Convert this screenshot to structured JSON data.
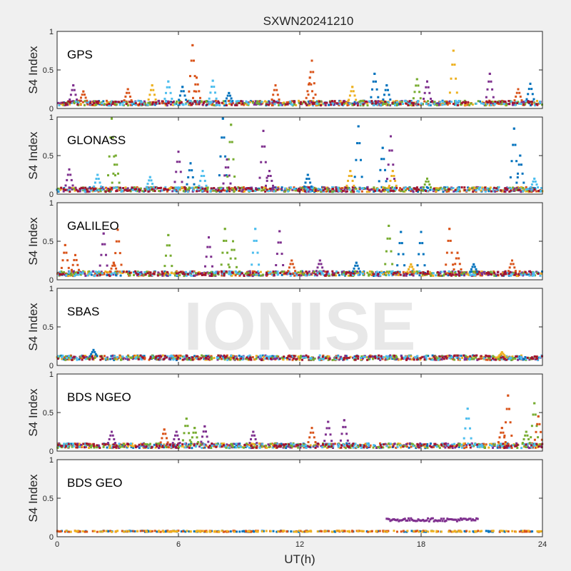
{
  "figure": {
    "title": "SXWN20241210",
    "xlabel": "UT(h)",
    "ylabel": "S4 Index",
    "watermark": "IONISE",
    "series_colors": [
      "#0072BD",
      "#D95319",
      "#EDB120",
      "#7E2F8E",
      "#77AC30",
      "#4DBEEE",
      "#A2142F"
    ]
  },
  "chart_data": [
    {
      "type": "scatter",
      "panel": "GPS",
      "ylabel": "S4 Index",
      "xlim": [
        0,
        24
      ],
      "ylim": [
        0,
        1
      ],
      "xticks": [
        0,
        6,
        12,
        18,
        24
      ],
      "yticks": [
        0,
        0.5,
        1
      ],
      "baseline": 0.07,
      "spikes": [
        {
          "x": 0.8,
          "y": 0.3,
          "color": "#7E2F8E"
        },
        {
          "x": 1.3,
          "y": 0.22,
          "color": "#D95319"
        },
        {
          "x": 3.5,
          "y": 0.25,
          "color": "#D95319"
        },
        {
          "x": 4.7,
          "y": 0.3,
          "color": "#EDB120"
        },
        {
          "x": 5.5,
          "y": 0.35,
          "color": "#4DBEEE"
        },
        {
          "x": 6.2,
          "y": 0.28,
          "color": "#0072BD"
        },
        {
          "x": 6.7,
          "y": 0.82,
          "color": "#D95319"
        },
        {
          "x": 6.9,
          "y": 0.4,
          "color": "#D95319"
        },
        {
          "x": 7.7,
          "y": 0.36,
          "color": "#4DBEEE"
        },
        {
          "x": 8.5,
          "y": 0.2,
          "color": "#0072BD"
        },
        {
          "x": 10.8,
          "y": 0.3,
          "color": "#D95319"
        },
        {
          "x": 12.6,
          "y": 0.62,
          "color": "#D95319"
        },
        {
          "x": 12.5,
          "y": 0.4,
          "color": "#D95319"
        },
        {
          "x": 14.6,
          "y": 0.28,
          "color": "#EDB120"
        },
        {
          "x": 15.7,
          "y": 0.45,
          "color": "#0072BD"
        },
        {
          "x": 16.3,
          "y": 0.3,
          "color": "#0072BD"
        },
        {
          "x": 17.8,
          "y": 0.38,
          "color": "#77AC30"
        },
        {
          "x": 18.3,
          "y": 0.35,
          "color": "#7E2F8E"
        },
        {
          "x": 19.6,
          "y": 0.75,
          "color": "#EDB120"
        },
        {
          "x": 21.4,
          "y": 0.45,
          "color": "#7E2F8E"
        },
        {
          "x": 22.8,
          "y": 0.25,
          "color": "#D95319"
        },
        {
          "x": 23.4,
          "y": 0.32,
          "color": "#0072BD"
        }
      ]
    },
    {
      "type": "scatter",
      "panel": "GLONASS",
      "ylabel": "S4 Index",
      "xlim": [
        0,
        24
      ],
      "ylim": [
        0,
        1
      ],
      "xticks": [
        0,
        6,
        12,
        18,
        24
      ],
      "yticks": [
        0,
        0.5,
        1
      ],
      "baseline": 0.06,
      "spikes": [
        {
          "x": 0.6,
          "y": 0.32,
          "color": "#7E2F8E"
        },
        {
          "x": 2.0,
          "y": 0.25,
          "color": "#4DBEEE"
        },
        {
          "x": 2.7,
          "y": 0.98,
          "color": "#77AC30"
        },
        {
          "x": 2.9,
          "y": 0.5,
          "color": "#77AC30"
        },
        {
          "x": 4.6,
          "y": 0.22,
          "color": "#4DBEEE"
        },
        {
          "x": 6.0,
          "y": 0.55,
          "color": "#7E2F8E"
        },
        {
          "x": 6.6,
          "y": 0.4,
          "color": "#0072BD"
        },
        {
          "x": 7.2,
          "y": 0.3,
          "color": "#4DBEEE"
        },
        {
          "x": 8.2,
          "y": 0.98,
          "color": "#0072BD"
        },
        {
          "x": 8.6,
          "y": 0.9,
          "color": "#77AC30"
        },
        {
          "x": 8.4,
          "y": 0.45,
          "color": "#7E2F8E"
        },
        {
          "x": 10.2,
          "y": 0.82,
          "color": "#7E2F8E"
        },
        {
          "x": 10.5,
          "y": 0.3,
          "color": "#7E2F8E"
        },
        {
          "x": 12.4,
          "y": 0.25,
          "color": "#0072BD"
        },
        {
          "x": 14.5,
          "y": 0.3,
          "color": "#EDB120"
        },
        {
          "x": 14.9,
          "y": 0.88,
          "color": "#0072BD"
        },
        {
          "x": 16.1,
          "y": 0.6,
          "color": "#0072BD"
        },
        {
          "x": 16.5,
          "y": 0.75,
          "color": "#7E2F8E"
        },
        {
          "x": 16.6,
          "y": 0.3,
          "color": "#EDB120"
        },
        {
          "x": 18.3,
          "y": 0.2,
          "color": "#77AC30"
        },
        {
          "x": 22.6,
          "y": 0.85,
          "color": "#0072BD"
        },
        {
          "x": 22.9,
          "y": 0.5,
          "color": "#0072BD"
        },
        {
          "x": 23.6,
          "y": 0.2,
          "color": "#4DBEEE"
        }
      ]
    },
    {
      "type": "scatter",
      "panel": "GALILEO",
      "ylabel": "S4 Index",
      "xlim": [
        0,
        24
      ],
      "ylim": [
        0,
        1
      ],
      "xticks": [
        0,
        6,
        12,
        18,
        24
      ],
      "yticks": [
        0,
        0.5,
        1
      ],
      "baseline": 0.08,
      "spikes": [
        {
          "x": 0.4,
          "y": 0.45,
          "color": "#D95319"
        },
        {
          "x": 0.9,
          "y": 0.32,
          "color": "#D95319"
        },
        {
          "x": 2.3,
          "y": 0.6,
          "color": "#7E2F8E"
        },
        {
          "x": 3.0,
          "y": 0.65,
          "color": "#D95319"
        },
        {
          "x": 2.8,
          "y": 0.22,
          "color": "#D95319"
        },
        {
          "x": 5.5,
          "y": 0.58,
          "color": "#77AC30"
        },
        {
          "x": 7.5,
          "y": 0.55,
          "color": "#7E2F8E"
        },
        {
          "x": 8.3,
          "y": 0.66,
          "color": "#77AC30"
        },
        {
          "x": 8.7,
          "y": 0.5,
          "color": "#77AC30"
        },
        {
          "x": 9.8,
          "y": 0.66,
          "color": "#4DBEEE"
        },
        {
          "x": 11.0,
          "y": 0.63,
          "color": "#7E2F8E"
        },
        {
          "x": 11.6,
          "y": 0.25,
          "color": "#D95319"
        },
        {
          "x": 13.0,
          "y": 0.25,
          "color": "#7E2F8E"
        },
        {
          "x": 14.8,
          "y": 0.22,
          "color": "#0072BD"
        },
        {
          "x": 16.4,
          "y": 0.7,
          "color": "#77AC30"
        },
        {
          "x": 17.0,
          "y": 0.62,
          "color": "#0072BD"
        },
        {
          "x": 17.5,
          "y": 0.2,
          "color": "#EDB120"
        },
        {
          "x": 18.0,
          "y": 0.62,
          "color": "#0072BD"
        },
        {
          "x": 19.4,
          "y": 0.66,
          "color": "#D95319"
        },
        {
          "x": 19.8,
          "y": 0.35,
          "color": "#D95319"
        },
        {
          "x": 20.6,
          "y": 0.2,
          "color": "#0072BD"
        },
        {
          "x": 22.5,
          "y": 0.25,
          "color": "#D95319"
        }
      ]
    },
    {
      "type": "scatter",
      "panel": "SBAS",
      "ylabel": "S4 Index",
      "xlim": [
        0,
        24
      ],
      "ylim": [
        0,
        1
      ],
      "xticks": [
        0,
        6,
        12,
        18,
        24
      ],
      "yticks": [
        0,
        0.5,
        1
      ],
      "baseline": 0.1,
      "spikes": [
        {
          "x": 1.8,
          "y": 0.2,
          "color": "#0072BD"
        },
        {
          "x": 22.0,
          "y": 0.17,
          "color": "#EDB120"
        }
      ]
    },
    {
      "type": "scatter",
      "panel": "BDS NGEO",
      "ylabel": "S4 Index",
      "xlim": [
        0,
        24
      ],
      "ylim": [
        0,
        1
      ],
      "xticks": [
        0,
        6,
        12,
        18,
        24
      ],
      "yticks": [
        0,
        0.5,
        1
      ],
      "baseline": 0.07,
      "spikes": [
        {
          "x": 2.7,
          "y": 0.25,
          "color": "#7E2F8E"
        },
        {
          "x": 5.3,
          "y": 0.28,
          "color": "#D95319"
        },
        {
          "x": 5.9,
          "y": 0.25,
          "color": "#7E2F8E"
        },
        {
          "x": 6.4,
          "y": 0.42,
          "color": "#77AC30"
        },
        {
          "x": 6.8,
          "y": 0.3,
          "color": "#77AC30"
        },
        {
          "x": 7.3,
          "y": 0.32,
          "color": "#7E2F8E"
        },
        {
          "x": 9.7,
          "y": 0.25,
          "color": "#7E2F8E"
        },
        {
          "x": 12.6,
          "y": 0.3,
          "color": "#D95319"
        },
        {
          "x": 13.4,
          "y": 0.38,
          "color": "#7E2F8E"
        },
        {
          "x": 14.2,
          "y": 0.4,
          "color": "#7E2F8E"
        },
        {
          "x": 20.3,
          "y": 0.55,
          "color": "#4DBEEE"
        },
        {
          "x": 22.3,
          "y": 0.72,
          "color": "#D95319"
        },
        {
          "x": 22.0,
          "y": 0.3,
          "color": "#D95319"
        },
        {
          "x": 23.6,
          "y": 0.62,
          "color": "#77AC30"
        },
        {
          "x": 23.8,
          "y": 0.45,
          "color": "#D95319"
        },
        {
          "x": 23.2,
          "y": 0.25,
          "color": "#77AC30"
        }
      ]
    },
    {
      "type": "scatter",
      "panel": "BDS GEO",
      "ylabel": "S4 Index",
      "xlim": [
        0,
        24
      ],
      "ylim": [
        0,
        1
      ],
      "xticks": [
        0,
        6,
        12,
        18,
        24
      ],
      "yticks": [
        0,
        0.5,
        1
      ],
      "baseline": 0.07,
      "spikes": [],
      "segments": [
        {
          "x_start": 16.3,
          "x_end": 20.8,
          "y": 0.22,
          "color": "#7E2F8E"
        }
      ]
    }
  ]
}
